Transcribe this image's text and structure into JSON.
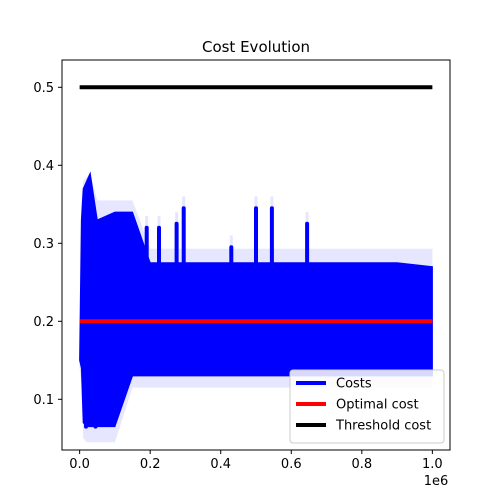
{
  "chart_data": {
    "type": "line",
    "title": "Cost Evolution",
    "xlabel": "",
    "ylabel": "",
    "x_offset_label": "1e6",
    "xlim": [
      -0.05,
      1.05
    ],
    "ylim": [
      0.035,
      0.535
    ],
    "x_ticks": [
      0.0,
      0.2,
      0.4,
      0.6,
      0.8,
      1.0
    ],
    "x_tick_labels": [
      "0.0",
      "0.2",
      "0.4",
      "0.6",
      "0.8",
      "1.0"
    ],
    "y_ticks": [
      0.1,
      0.2,
      0.3,
      0.4,
      0.5
    ],
    "y_tick_labels": [
      "0.1",
      "0.2",
      "0.3",
      "0.4",
      "0.5"
    ],
    "legend_position": "lower-right",
    "series": [
      {
        "name": "Costs",
        "color": "#0000ff",
        "band_color": "#e6e6ff",
        "x": [
          0.0,
          0.005,
          0.01,
          0.02,
          0.03,
          0.05,
          0.1,
          0.15,
          0.2,
          0.3,
          0.4,
          0.5,
          0.6,
          0.7,
          0.8,
          0.9,
          1.0
        ],
        "upper": [
          0.15,
          0.33,
          0.37,
          0.38,
          0.39,
          0.33,
          0.34,
          0.34,
          0.275,
          0.275,
          0.275,
          0.275,
          0.275,
          0.275,
          0.275,
          0.275,
          0.27
        ],
        "lower": [
          0.15,
          0.14,
          0.07,
          0.065,
          0.065,
          0.065,
          0.065,
          0.13,
          0.13,
          0.13,
          0.13,
          0.13,
          0.13,
          0.13,
          0.13,
          0.13,
          0.13
        ],
        "band_upper": [
          0.16,
          0.35,
          0.38,
          0.385,
          0.39,
          0.355,
          0.355,
          0.355,
          0.293,
          0.293,
          0.293,
          0.293,
          0.293,
          0.293,
          0.293,
          0.293,
          0.293
        ],
        "band_lower": [
          0.14,
          0.12,
          0.05,
          0.045,
          0.045,
          0.045,
          0.045,
          0.115,
          0.115,
          0.115,
          0.115,
          0.115,
          0.115,
          0.115,
          0.115,
          0.115,
          0.115
        ],
        "spikes": [
          {
            "x": 0.19,
            "top": 0.32
          },
          {
            "x": 0.225,
            "top": 0.32
          },
          {
            "x": 0.275,
            "top": 0.325
          },
          {
            "x": 0.295,
            "top": 0.345
          },
          {
            "x": 0.43,
            "top": 0.295
          },
          {
            "x": 0.5,
            "top": 0.345
          },
          {
            "x": 0.545,
            "top": 0.345
          },
          {
            "x": 0.645,
            "top": 0.325
          }
        ],
        "dips": [
          {
            "x": 0.018,
            "bottom": 0.065
          },
          {
            "x": 0.045,
            "bottom": 0.065
          },
          {
            "x": 0.095,
            "bottom": 0.068
          },
          {
            "x": 0.81,
            "bottom": 0.135
          },
          {
            "x": 0.875,
            "bottom": 0.135
          },
          {
            "x": 0.915,
            "bottom": 0.135
          },
          {
            "x": 0.965,
            "bottom": 0.135
          }
        ]
      },
      {
        "name": "Optimal cost",
        "color": "#ff0000",
        "x": [
          0.0,
          1.0
        ],
        "y": [
          0.2,
          0.2
        ]
      },
      {
        "name": "Threshold cost",
        "color": "#000000",
        "x": [
          0.0,
          1.0
        ],
        "y": [
          0.5,
          0.5
        ]
      }
    ]
  }
}
